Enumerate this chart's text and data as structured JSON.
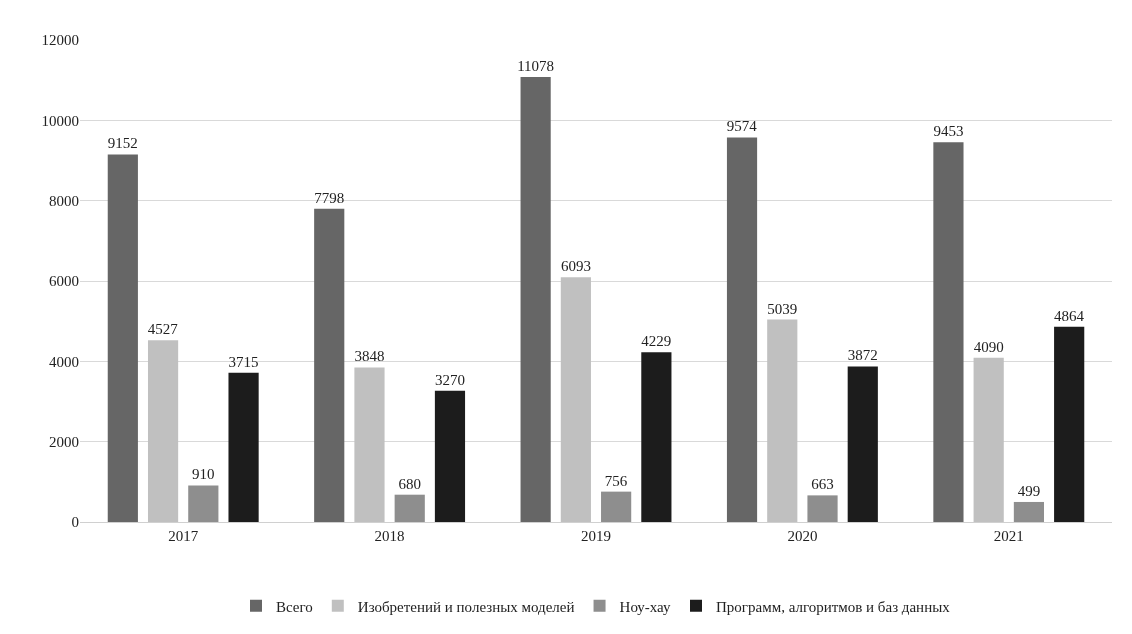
{
  "chart_data": {
    "type": "bar",
    "categories": [
      "2017",
      "2018",
      "2019",
      "2020",
      "2021"
    ],
    "series": [
      {
        "name": "Всего",
        "color": "#666666",
        "values": [
          9152,
          7798,
          11078,
          9574,
          9453
        ]
      },
      {
        "name": "Изобретений и полезных моделей",
        "color": "#c0c0c0",
        "values": [
          4527,
          3848,
          6093,
          5039,
          4090
        ]
      },
      {
        "name": "Ноу-хау",
        "color": "#8e8e8e",
        "values": [
          910,
          680,
          756,
          663,
          499
        ]
      },
      {
        "name": "Программ, алгоритмов и баз данных",
        "color": "#1c1c1c",
        "values": [
          3715,
          3270,
          4229,
          3872,
          4864
        ]
      }
    ],
    "ylim": [
      0,
      12000
    ],
    "yticks": [
      0,
      2000,
      4000,
      6000,
      8000,
      10000,
      12000
    ],
    "grid": "y",
    "legend": "bottom",
    "data_labels": true
  }
}
